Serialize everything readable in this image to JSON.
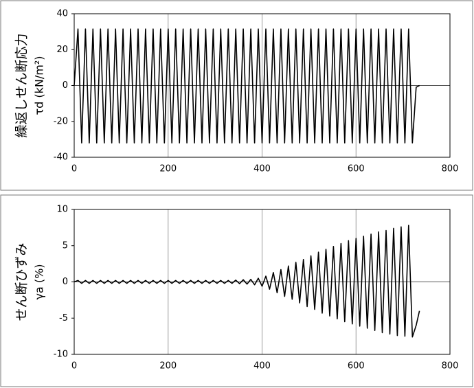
{
  "chart_data": [
    {
      "type": "line",
      "ylabel": "繰返しせん断応力",
      "ylabel2": "τd (kN/m²)",
      "color": "#000000",
      "grid": true,
      "xlim": [
        0,
        800
      ],
      "xticks": [
        0,
        200,
        400,
        600,
        800
      ],
      "ylim": [
        -40,
        40
      ],
      "yticks": [
        -40,
        -20,
        0,
        20,
        40
      ],
      "x": [
        0,
        8,
        16,
        24,
        32,
        40,
        48,
        56,
        64,
        72,
        80,
        88,
        96,
        104,
        112,
        120,
        128,
        136,
        144,
        152,
        160,
        168,
        176,
        184,
        192,
        200,
        208,
        216,
        224,
        232,
        240,
        248,
        256,
        264,
        272,
        280,
        288,
        296,
        304,
        312,
        320,
        328,
        336,
        344,
        352,
        360,
        368,
        376,
        384,
        392,
        400,
        408,
        416,
        424,
        432,
        440,
        448,
        456,
        464,
        472,
        480,
        488,
        496,
        504,
        512,
        520,
        528,
        536,
        544,
        552,
        560,
        568,
        576,
        584,
        592,
        600,
        608,
        616,
        624,
        632,
        640,
        648,
        656,
        664,
        672,
        680,
        688,
        696,
        704,
        712,
        720,
        728,
        735
      ],
      "values": [
        0,
        31.5,
        -32,
        31.5,
        -32,
        31.5,
        -32,
        31.5,
        -32,
        31.5,
        -32,
        31.5,
        -32,
        31.5,
        -32,
        31.5,
        -32,
        31.5,
        -32,
        31.5,
        -32,
        31.5,
        -32,
        31.5,
        -32,
        31.5,
        -32,
        31.5,
        -32,
        31.5,
        -32,
        31.5,
        -32,
        31.5,
        -32,
        31.5,
        -32,
        31.5,
        -32,
        31.5,
        -32,
        31.5,
        -32,
        31.5,
        -32,
        31.5,
        -32,
        31.5,
        -32,
        31.5,
        -32,
        31.5,
        -32,
        31.5,
        -32,
        31.5,
        -32,
        31.5,
        -32,
        31.5,
        -32,
        31.5,
        -32,
        31.5,
        -32,
        31.5,
        -32,
        31.5,
        -32,
        31.5,
        -32,
        31.5,
        -32,
        31.5,
        -32,
        31.5,
        -32,
        31.5,
        -32,
        31.5,
        -32,
        31.5,
        -32,
        31.5,
        -32,
        31.5,
        -32,
        31.5,
        -32,
        31.5,
        -32,
        -1,
        0
      ]
    },
    {
      "type": "line",
      "ylabel": "せん断ひずみ",
      "ylabel2": "γa (%)",
      "color": "#000000",
      "grid": true,
      "xlim": [
        0,
        800
      ],
      "xticks": [
        0,
        200,
        400,
        600,
        800
      ],
      "ylim": [
        -10,
        10
      ],
      "yticks": [
        -10,
        -5,
        0,
        5,
        10
      ],
      "x": [
        0,
        8,
        16,
        24,
        32,
        40,
        48,
        56,
        64,
        72,
        80,
        88,
        96,
        104,
        112,
        120,
        128,
        136,
        144,
        152,
        160,
        168,
        176,
        184,
        192,
        200,
        208,
        216,
        224,
        232,
        240,
        248,
        256,
        264,
        272,
        280,
        288,
        296,
        304,
        312,
        320,
        328,
        336,
        344,
        352,
        360,
        368,
        376,
        384,
        392,
        400,
        408,
        416,
        424,
        432,
        440,
        448,
        456,
        464,
        472,
        480,
        488,
        496,
        504,
        512,
        520,
        528,
        536,
        544,
        552,
        560,
        568,
        576,
        584,
        592,
        600,
        608,
        616,
        624,
        632,
        640,
        648,
        656,
        664,
        672,
        680,
        688,
        696,
        704,
        712,
        720,
        728,
        735
      ],
      "values": [
        0,
        0.2,
        -0.2,
        0.2,
        -0.2,
        0.2,
        -0.2,
        0.2,
        -0.2,
        0.2,
        -0.2,
        0.2,
        -0.2,
        0.2,
        -0.2,
        0.2,
        -0.2,
        0.2,
        -0.2,
        0.2,
        -0.2,
        0.2,
        -0.2,
        0.2,
        -0.2,
        0.2,
        -0.2,
        0.2,
        -0.2,
        0.2,
        -0.2,
        0.2,
        -0.2,
        0.2,
        -0.2,
        0.2,
        -0.2,
        0.2,
        -0.2,
        0.2,
        -0.2,
        0.2,
        -0.2,
        0.25,
        -0.25,
        0.3,
        -0.3,
        0.35,
        -0.4,
        0.5,
        -0.6,
        0.8,
        -1.0,
        1.3,
        -1.5,
        1.7,
        -2.0,
        2.2,
        -2.4,
        2.7,
        -2.9,
        3.1,
        -3.4,
        3.6,
        -3.8,
        4.1,
        -4.3,
        4.5,
        -4.7,
        4.9,
        -5.1,
        5.3,
        -5.5,
        5.7,
        -5.8,
        6.0,
        -6.1,
        6.3,
        -6.4,
        6.6,
        -6.7,
        6.9,
        -7.0,
        7.1,
        -7.2,
        7.4,
        -7.4,
        7.6,
        -7.5,
        7.8,
        -7.6,
        -6,
        -4
      ]
    }
  ]
}
